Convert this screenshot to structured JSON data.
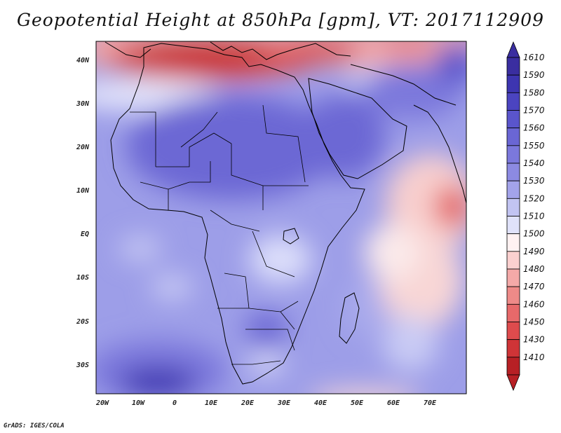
{
  "title": "Geopotential Height at 850hPa [gpm], VT: 2017112909",
  "credit": "GrADS: IGES/COLA",
  "map": {
    "lat_labels": [
      "40N",
      "30N",
      "20N",
      "10N",
      "EQ",
      "10S",
      "20S",
      "30S"
    ],
    "lon_labels": [
      "20W",
      "10W",
      "0",
      "10E",
      "20E",
      "30E",
      "40E",
      "50E",
      "60E",
      "70E"
    ]
  },
  "colorbar": {
    "levels": [
      "1610",
      "1590",
      "1580",
      "1570",
      "1560",
      "1550",
      "1540",
      "1530",
      "1520",
      "1510",
      "1500",
      "1490",
      "1480",
      "1470",
      "1460",
      "1450",
      "1430",
      "1410"
    ],
    "colors": [
      "#3a2ea0",
      "#3d35b0",
      "#4b44c0",
      "#5a55cc",
      "#6a66d4",
      "#7b78dc",
      "#8c8ae2",
      "#a3a3ea",
      "#c2c4f2",
      "#e0e2fa",
      "#fff2f2",
      "#fbd0cf",
      "#f4a9a8",
      "#ee8a88",
      "#e7696a",
      "#de4b4d",
      "#cf3437",
      "#b72025"
    ]
  }
}
